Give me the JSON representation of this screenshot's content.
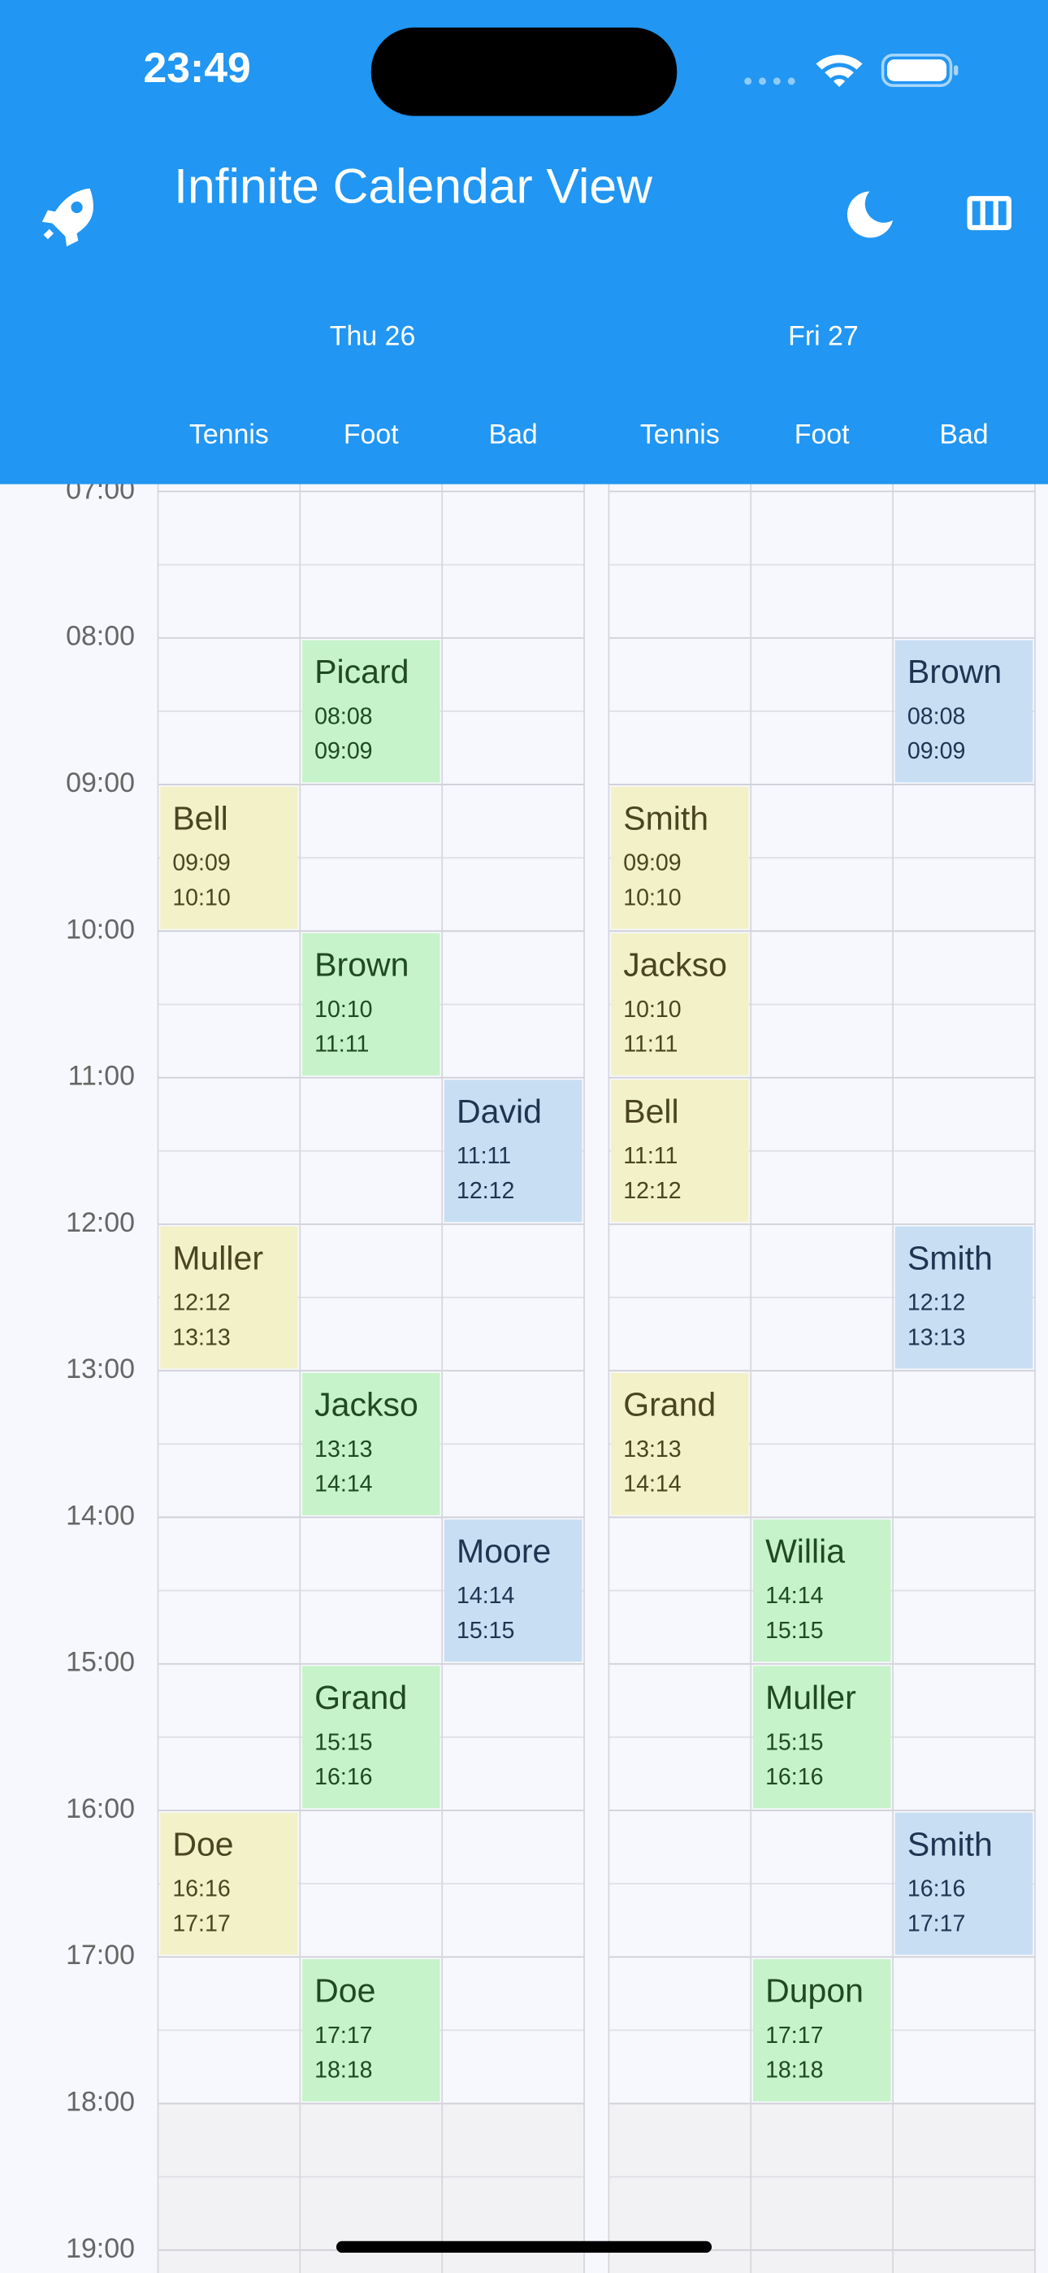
{
  "status_bar": {
    "time": "23:49"
  },
  "header": {
    "title": "Infinite Calendar View"
  },
  "hours": [
    "07:00",
    "08:00",
    "09:00",
    "10:00",
    "11:00",
    "12:00",
    "13:00",
    "14:00",
    "15:00",
    "16:00",
    "17:00",
    "18:00",
    "19:00"
  ],
  "days": [
    {
      "label": "Thu 26",
      "columns": [
        {
          "name": "Tennis",
          "events": [
            {
              "name": "Bell",
              "start": "09:09",
              "end": "10:10"
            },
            {
              "name": "Muller",
              "start": "12:12",
              "end": "13:13"
            },
            {
              "name": "Doe",
              "start": "16:16",
              "end": "17:17"
            }
          ]
        },
        {
          "name": "Foot",
          "events": [
            {
              "name": "Picard",
              "start": "08:08",
              "end": "09:09"
            },
            {
              "name": "Brown",
              "start": "10:10",
              "end": "11:11"
            },
            {
              "name": "Jackso",
              "start": "13:13",
              "end": "14:14"
            },
            {
              "name": "Grand",
              "start": "15:15",
              "end": "16:16"
            },
            {
              "name": "Doe",
              "start": "17:17",
              "end": "18:18"
            }
          ]
        },
        {
          "name": "Bad",
          "events": [
            {
              "name": "David",
              "start": "11:11",
              "end": "12:12"
            },
            {
              "name": "Moore",
              "start": "14:14",
              "end": "15:15"
            }
          ]
        }
      ]
    },
    {
      "label": "Fri 27",
      "columns": [
        {
          "name": "Tennis",
          "events": [
            {
              "name": "Smith",
              "start": "09:09",
              "end": "10:10"
            },
            {
              "name": "Jackso",
              "start": "10:10",
              "end": "11:11"
            },
            {
              "name": "Bell",
              "start": "11:11",
              "end": "12:12"
            },
            {
              "name": "Grand",
              "start": "13:13",
              "end": "14:14"
            }
          ]
        },
        {
          "name": "Foot",
          "events": [
            {
              "name": "Willia",
              "start": "14:14",
              "end": "15:15"
            },
            {
              "name": "Muller",
              "start": "15:15",
              "end": "16:16"
            },
            {
              "name": "Dupon",
              "start": "17:17",
              "end": "18:18"
            }
          ]
        },
        {
          "name": "Bad",
          "events": [
            {
              "name": "Brown",
              "start": "08:08",
              "end": "09:09"
            },
            {
              "name": "Smith",
              "start": "12:12",
              "end": "13:13"
            },
            {
              "name": "Smith",
              "start": "16:16",
              "end": "17:17"
            }
          ]
        }
      ]
    }
  ]
}
